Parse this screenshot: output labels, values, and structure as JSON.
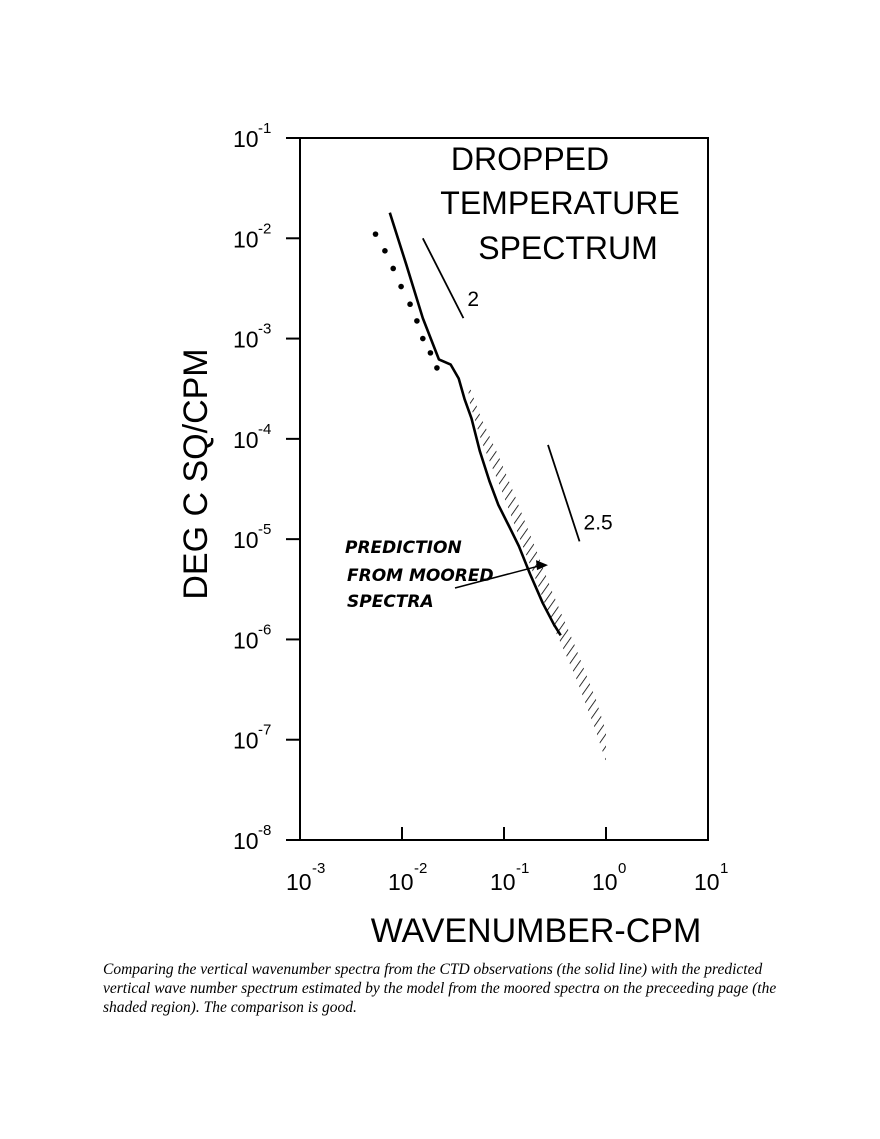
{
  "chart_data": {
    "type": "line",
    "title_lines": [
      "DROPPED",
      "TEMPERATURE",
      "SPECTRUM"
    ],
    "xlabel": "WAVENUMBER-CPM",
    "ylabel": "DEG C SQ/CPM",
    "x_scale": "log",
    "y_scale": "log",
    "xlim": [
      0.001,
      10
    ],
    "ylim": [
      1e-08,
      0.1
    ],
    "x_ticks": [
      {
        "base": "10",
        "exp": "-3",
        "value": 0.001
      },
      {
        "base": "10",
        "exp": "-2",
        "value": 0.01
      },
      {
        "base": "10",
        "exp": "-1",
        "value": 0.1
      },
      {
        "base": "10",
        "exp": "0",
        "value": 1
      },
      {
        "base": "10",
        "exp": "1",
        "value": 10
      }
    ],
    "y_ticks": [
      {
        "base": "10",
        "exp": "-1",
        "value": 0.1
      },
      {
        "base": "10",
        "exp": "-2",
        "value": 0.01
      },
      {
        "base": "10",
        "exp": "-3",
        "value": 0.001
      },
      {
        "base": "10",
        "exp": "-4",
        "value": 0.0001
      },
      {
        "base": "10",
        "exp": "-5",
        "value": 1e-05
      },
      {
        "base": "10",
        "exp": "-6",
        "value": 1e-06
      },
      {
        "base": "10",
        "exp": "-7",
        "value": 1e-07
      },
      {
        "base": "10",
        "exp": "-8",
        "value": 1e-08
      }
    ],
    "grid": false,
    "series": [
      {
        "style": "solid",
        "points": [
          [
            0.0076,
            0.018
          ],
          [
            0.011,
            0.0055
          ],
          [
            0.016,
            0.0016
          ],
          [
            0.023,
            0.00062
          ],
          [
            0.03,
            0.00055
          ],
          [
            0.036,
            0.0004
          ],
          [
            0.041,
            0.00025
          ],
          [
            0.048,
            0.00016
          ],
          [
            0.058,
            7.5e-05
          ],
          [
            0.072,
            3.8e-05
          ],
          [
            0.088,
            2.2e-05
          ],
          [
            0.11,
            1.4e-05
          ],
          [
            0.14,
            8.5e-06
          ],
          [
            0.18,
            4.5e-06
          ],
          [
            0.24,
            2.3e-06
          ],
          [
            0.31,
            1.4e-06
          ],
          [
            0.36,
            1.1e-06
          ]
        ]
      },
      {
        "style": "dotted",
        "points": [
          [
            0.0055,
            0.011
          ],
          [
            0.0068,
            0.0075
          ],
          [
            0.0082,
            0.005
          ],
          [
            0.0098,
            0.0033
          ],
          [
            0.012,
            0.0022
          ],
          [
            0.014,
            0.0015
          ],
          [
            0.016,
            0.001
          ],
          [
            0.019,
            0.00072
          ],
          [
            0.022,
            0.00051
          ]
        ]
      }
    ],
    "shaded_region": {
      "x": [
        0.045,
        0.06,
        0.09,
        0.13,
        0.2,
        0.3,
        0.5,
        0.8,
        1.0
      ],
      "y_low": [
        0.00025,
        9.5e-05,
        3.5e-05,
        1.3e-05,
        4.2e-06,
        1.4e-06,
        4.3e-07,
        1.2e-07,
        6e-08
      ],
      "y_high": [
        0.00035,
        0.00016,
        6.5e-05,
        2.6e-05,
        8.5e-06,
        2.9e-06,
        8.5e-07,
        2.5e-07,
        1.2e-07
      ]
    },
    "slope_lines": [
      {
        "label": "2",
        "from": [
          0.016,
          0.01
        ],
        "to": [
          0.04,
          0.0016
        ]
      },
      {
        "label": "2.5",
        "from": [
          0.27,
          8.7e-05
        ],
        "to": [
          0.55,
          9.5e-06
        ]
      }
    ],
    "annotations": [
      {
        "lines": [
          "PREDICTION",
          "FROM MOORED",
          "SPECTRA"
        ],
        "target": [
          0.27,
          5.5e-06
        ]
      }
    ]
  },
  "caption": "Comparing the vertical wavenumber spectra from the CTD observations (the solid line) with the predicted vertical wave number spectrum estimated by the model from the moored spectra on the preceeding page (the shaded region).  The comparison is good."
}
